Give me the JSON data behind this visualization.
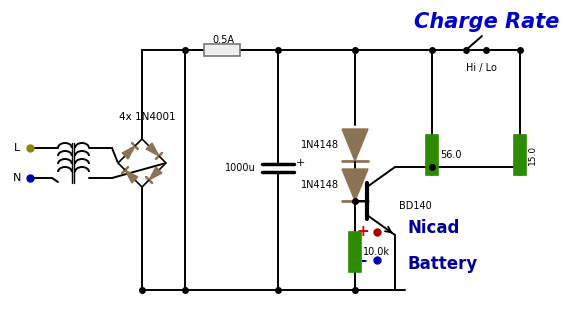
{
  "bg_color": "#FFFFFF",
  "line_color": "#000000",
  "diode_color": "#8B7355",
  "resistor_color": "#2E8B00",
  "title": "Charge Rate",
  "title_color": "#0000CC",
  "title_fontsize": 15,
  "labels": {
    "fuse": "0.5A",
    "bridge": "4x 1N4001",
    "cap": "1000u",
    "diode1": "1N4148",
    "diode2": "1N4148",
    "r56": "56.0",
    "r15": "15.0",
    "r10k": "10.0k",
    "transistor": "BD140",
    "hi_lo": "Hi / Lo",
    "L": "L",
    "N": "N",
    "plus": "+",
    "minus": "-",
    "nicad": "Nicad",
    "battery": "Battery"
  },
  "colors": {
    "L_dot": "#888800",
    "N_dot": "#0000AA",
    "plus_dot": "#AA0000",
    "minus_dot": "#0000AA"
  }
}
